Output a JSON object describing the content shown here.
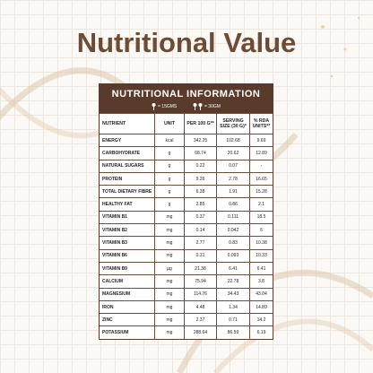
{
  "header": {
    "title": "Nutritional Value"
  },
  "table": {
    "title": "NUTRITIONAL INFORMATION",
    "legend": [
      "= 15GMS",
      "= 30GM"
    ],
    "columns": [
      "NUTRIENT",
      "UNIT",
      "PER 100 G**",
      "SERVING SIZE (30 G)*",
      "% RDA UNITS**"
    ],
    "rows": [
      [
        "ENERGY",
        "kcal",
        "342.25",
        "102.68",
        "9.69"
      ],
      [
        "CARBOHYDRATE",
        "g",
        "68.74",
        "20.62",
        "12.89"
      ],
      [
        "NATURAL SUGARS",
        "g",
        "0.22",
        "0.07",
        "-"
      ],
      [
        "PROTEIN",
        "g",
        "9.26",
        "2.78",
        "16.65"
      ],
      [
        "TOTAL DIETARY FIBRE",
        "g",
        "6.38",
        "1.91",
        "15.28"
      ],
      [
        "HEALTHY FAT",
        "g",
        "2.85",
        "0.86",
        "2.1"
      ],
      [
        "VITAMIN B1",
        "mg",
        "0.37",
        "0.111",
        "18.5"
      ],
      [
        "VITAMIN B2",
        "mg",
        "0.14",
        "0.042",
        "6"
      ],
      [
        "VITAMIN B3",
        "mg",
        "2.77",
        "0.83",
        "10.38"
      ],
      [
        "VITAMIN B6",
        "mg",
        "0.31",
        "0.093",
        "10.33"
      ],
      [
        "VITAMIN B9",
        "µg",
        "21.38",
        "6.41",
        "6.41"
      ],
      [
        "CALCIUM",
        "mg",
        "75.94",
        "22.78",
        "3.8"
      ],
      [
        "MAGNESIUM",
        "mg",
        "114.76",
        "34.43",
        "43.04"
      ],
      [
        "IRON",
        "mg",
        "4.48",
        "1.34",
        "14.89"
      ],
      [
        "ZINC",
        "mg",
        "2.37",
        "0.71",
        "14.2"
      ],
      [
        "POTASSIUM",
        "mg",
        "288.64",
        "86.59",
        "6.19"
      ]
    ]
  }
}
